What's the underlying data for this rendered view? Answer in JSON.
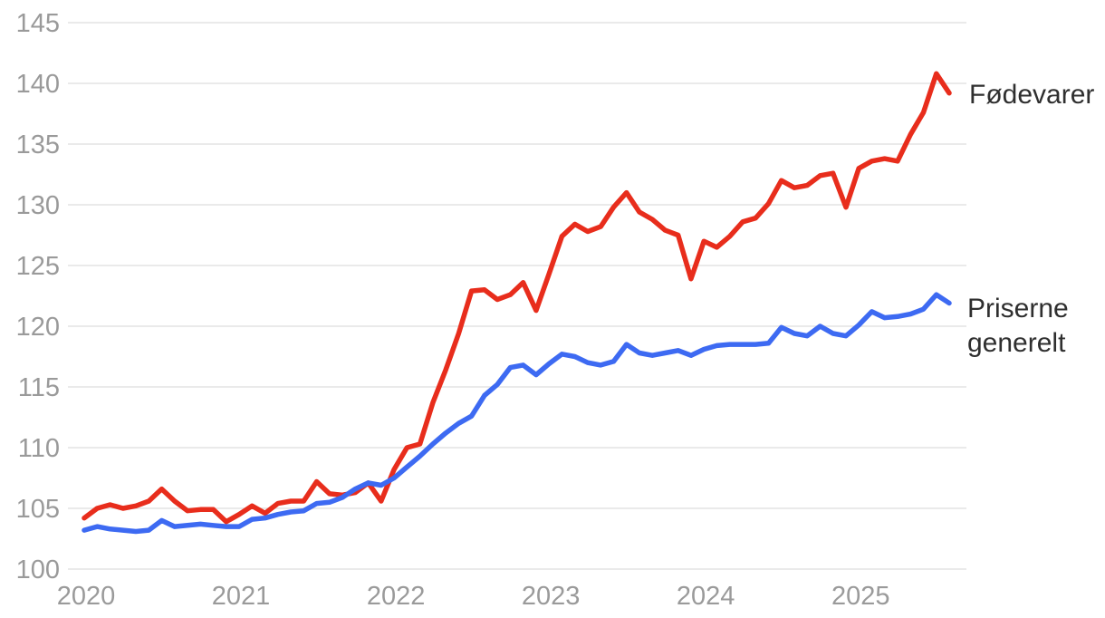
{
  "chart_data": {
    "type": "line",
    "title": "",
    "x_unit": "month",
    "x_start": "2020-01",
    "x_end": "2025-08",
    "x_tick_labels": [
      "2020",
      "2021",
      "2022",
      "2023",
      "2024",
      "2025"
    ],
    "y_ticks": [
      100,
      105,
      110,
      115,
      120,
      125,
      130,
      135,
      140,
      145
    ],
    "ylim": [
      100,
      145
    ],
    "grid": "horizontal",
    "legend_position": "right-end-labels",
    "series": [
      {
        "name": "Fødevarer",
        "color": "#e82d1c",
        "values": [
          104.2,
          105.0,
          105.3,
          105.0,
          105.2,
          105.6,
          106.6,
          105.6,
          104.8,
          104.9,
          104.9,
          103.9,
          104.5,
          105.2,
          104.6,
          105.4,
          105.6,
          105.6,
          107.2,
          106.2,
          106.1,
          106.3,
          107.1,
          105.6,
          108.2,
          110.0,
          110.3,
          113.7,
          116.4,
          119.4,
          122.9,
          123.0,
          122.2,
          122.6,
          123.6,
          121.3,
          124.3,
          127.4,
          128.4,
          127.8,
          128.2,
          129.8,
          131.0,
          129.4,
          128.8,
          127.9,
          127.5,
          123.9,
          127.0,
          126.5,
          127.4,
          128.6,
          128.9,
          130.1,
          132.0,
          131.4,
          131.6,
          132.4,
          132.6,
          129.8,
          133.0,
          133.6,
          133.8,
          133.6,
          135.8,
          137.6,
          140.8,
          139.2
        ]
      },
      {
        "name": "Priserne generelt",
        "color": "#3d6af2",
        "values": [
          103.2,
          103.5,
          103.3,
          103.2,
          103.1,
          103.2,
          104.0,
          103.5,
          103.6,
          103.7,
          103.6,
          103.5,
          103.5,
          104.1,
          104.2,
          104.5,
          104.7,
          104.8,
          105.4,
          105.5,
          105.9,
          106.6,
          107.1,
          106.9,
          107.5,
          108.4,
          109.3,
          110.3,
          111.2,
          112.0,
          112.6,
          114.3,
          115.2,
          116.6,
          116.8,
          116.0,
          116.9,
          117.7,
          117.5,
          117.0,
          116.8,
          117.1,
          118.5,
          117.8,
          117.6,
          117.8,
          118.0,
          117.6,
          118.1,
          118.4,
          118.5,
          118.5,
          118.5,
          118.6,
          119.9,
          119.4,
          119.2,
          120.0,
          119.4,
          119.2,
          120.1,
          121.2,
          120.7,
          120.8,
          121.0,
          121.4,
          122.6,
          121.9
        ]
      }
    ]
  },
  "labels": {
    "series_food": "Fødevarer",
    "series_cpi": "Priserne generelt"
  },
  "style": {
    "grid_color": "#e4e4e4",
    "tick_label_color": "#9a9a9a",
    "series_label_color": "#2f2f2f",
    "background": "#ffffff"
  }
}
